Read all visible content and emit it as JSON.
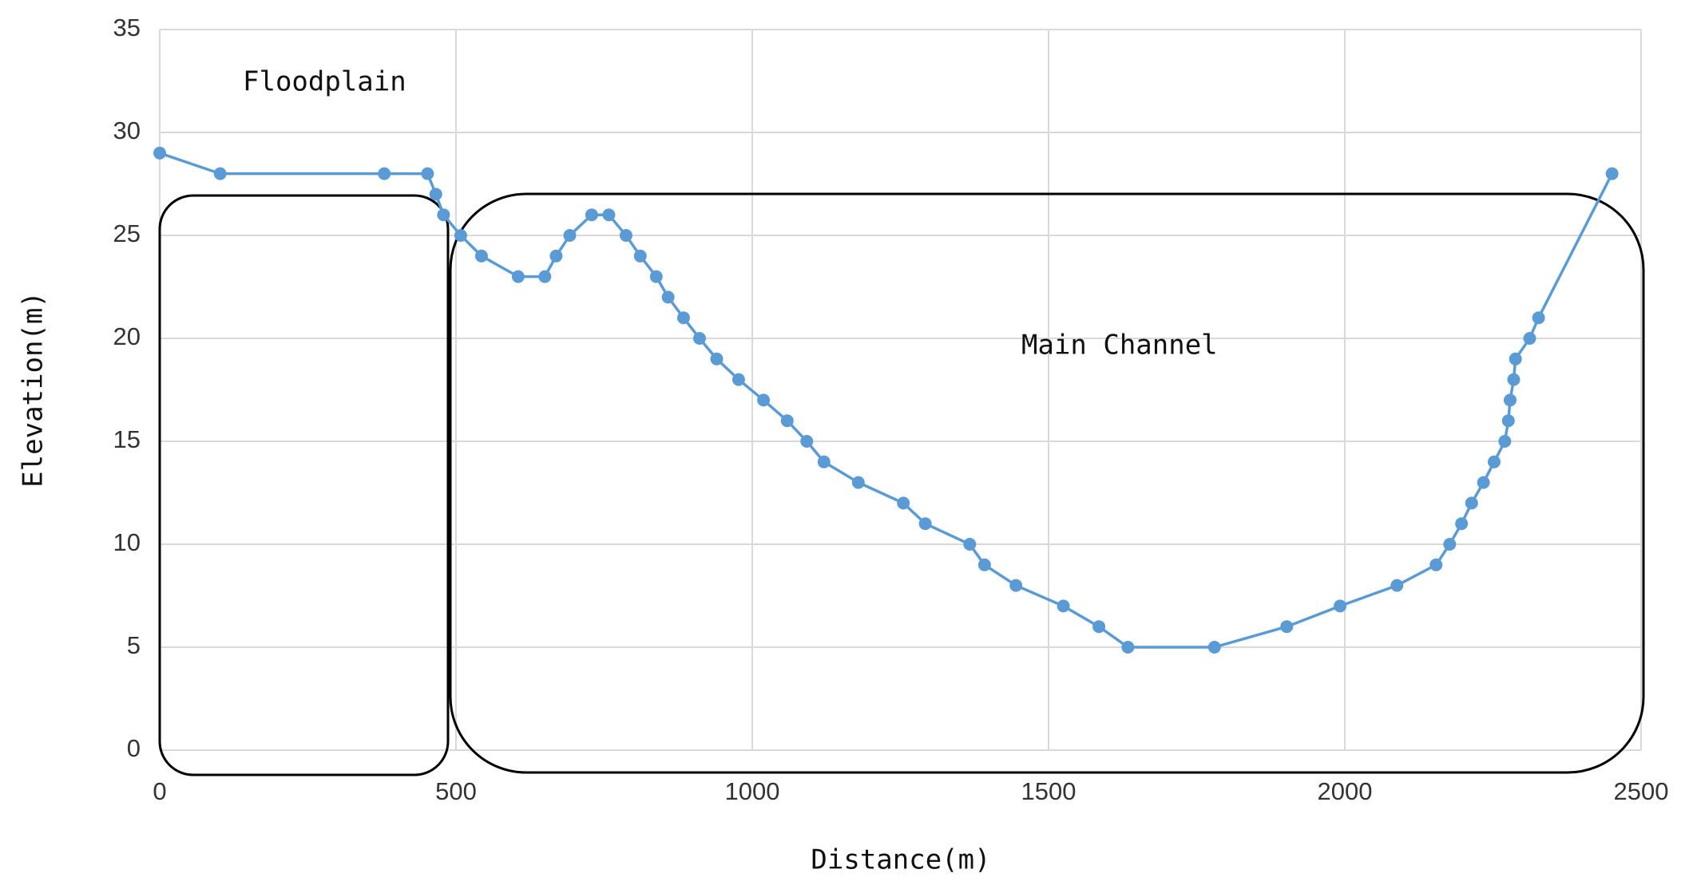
{
  "chart_data": {
    "type": "line",
    "x_label": "Distance(m)",
    "y_label": "Elevation(m)",
    "annotations": [
      "Floodplain",
      "Main Channel"
    ],
    "x": [
      0,
      102,
      379,
      452,
      466,
      479,
      508,
      543,
      605,
      650,
      669,
      692,
      729,
      758,
      787,
      811,
      838,
      858,
      884,
      911,
      940,
      977,
      1019,
      1059,
      1092,
      1121,
      1179,
      1255,
      1292,
      1367,
      1392,
      1445,
      1525,
      1585,
      1634,
      1780,
      1902,
      1992,
      2088,
      2154,
      2177,
      2197,
      2214,
      2234,
      2252,
      2270,
      2276,
      2279,
      2285,
      2288,
      2312,
      2327,
      2451
    ],
    "values": [
      29,
      28,
      28,
      28,
      27,
      26,
      25,
      24,
      23,
      23,
      24,
      25,
      26,
      26,
      25,
      24,
      23,
      22,
      21,
      20,
      19,
      18,
      17,
      16,
      15,
      14,
      13,
      12,
      11,
      10,
      9,
      8,
      7,
      6,
      5,
      5,
      6,
      7,
      8,
      9,
      10,
      11,
      12,
      13,
      14,
      15,
      16,
      17,
      18,
      19,
      20,
      21,
      28
    ],
    "color": "#5b9bd5",
    "xlim": [
      0,
      2500
    ],
    "xticks": [
      0,
      500,
      1000,
      1500,
      2000,
      2500
    ],
    "ylim": [
      0,
      35
    ],
    "yticks": [
      0,
      5,
      10,
      15,
      20,
      25,
      30,
      35
    ],
    "grid": true
  }
}
